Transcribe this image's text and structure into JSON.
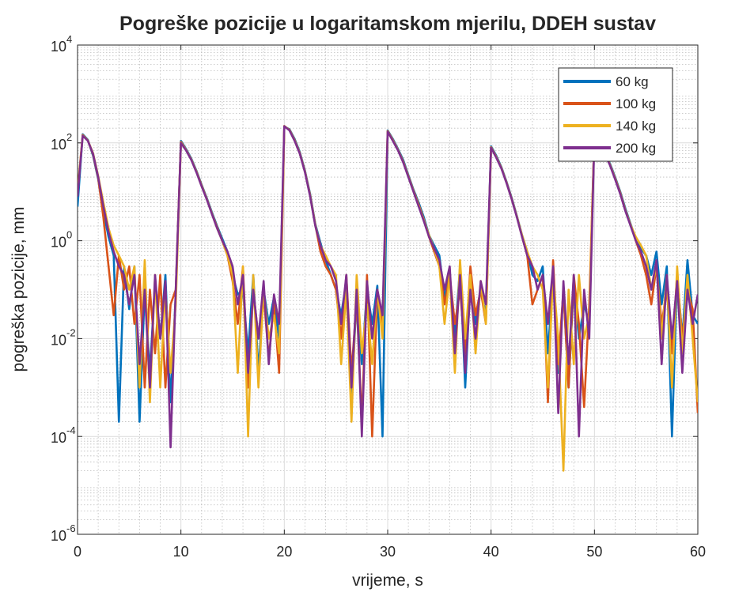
{
  "chart_data": {
    "type": "line",
    "title": "Pogreške pozicije u logaritamskom mjerilu, DDEH sustav",
    "xlabel": "vrijeme, s",
    "ylabel": "pogreška pozicije, mm",
    "yscale": "log",
    "grid": true,
    "minor_grid": true,
    "legend": "northeast",
    "xlim": [
      0,
      60
    ],
    "xticks": [
      0,
      10,
      20,
      30,
      40,
      50,
      60
    ],
    "ylim": [
      1e-06,
      10000
    ],
    "yticks": [
      {
        "value": 1e-06,
        "label": "10",
        "exponent": "-6"
      },
      {
        "value": 0.0001,
        "label": "10",
        "exponent": "-4"
      },
      {
        "value": 0.01,
        "label": "10",
        "exponent": "-2"
      },
      {
        "value": 1,
        "label": "10",
        "exponent": "0"
      },
      {
        "value": 100,
        "label": "10",
        "exponent": "2"
      },
      {
        "value": 10000,
        "label": "10",
        "exponent": "4"
      }
    ],
    "x": [
      0,
      0.5,
      1,
      1.5,
      2,
      2.5,
      3,
      3.5,
      4,
      4.5,
      5,
      5.5,
      6,
      6.5,
      7,
      7.5,
      8,
      8.5,
      9,
      9.5,
      10,
      10.5,
      11,
      11.5,
      12,
      12.5,
      13,
      13.5,
      14,
      14.5,
      15,
      15.5,
      16,
      16.5,
      17,
      17.5,
      18,
      18.5,
      19,
      19.5,
      20,
      20.5,
      21,
      21.5,
      22,
      22.5,
      23,
      23.5,
      24,
      24.5,
      25,
      25.5,
      26,
      26.5,
      27,
      27.5,
      28,
      28.5,
      29,
      29.5,
      30,
      30.5,
      31,
      31.5,
      32,
      32.5,
      33,
      33.5,
      34,
      34.5,
      35,
      35.5,
      36,
      36.5,
      37,
      37.5,
      38,
      38.5,
      39,
      39.5,
      40,
      40.5,
      41,
      41.5,
      42,
      42.5,
      43,
      43.5,
      44,
      44.5,
      45,
      45.5,
      46,
      46.5,
      47,
      47.5,
      48,
      48.5,
      49,
      49.5,
      50,
      50.5,
      51,
      51.5,
      52,
      52.5,
      53,
      53.5,
      54,
      54.5,
      55,
      55.5,
      56,
      56.5,
      57,
      57.5,
      58,
      58.5,
      59,
      59.5,
      60
    ],
    "series": [
      {
        "name": "60 kg",
        "color": "#0072bd",
        "values": [
          5,
          150,
          115,
          55,
          18,
          4,
          1.2,
          0.5,
          0.0002,
          0.3,
          0.04,
          0.3,
          0.0002,
          0.1,
          0.002,
          0.15,
          0.01,
          0.2,
          0.0005,
          0.08,
          110,
          75,
          48,
          27,
          14,
          7.5,
          3.8,
          2,
          1.1,
          0.6,
          0.2,
          0.08,
          0.1,
          0.005,
          0.2,
          0.002,
          0.1,
          0.02,
          0.07,
          0.01,
          215,
          190,
          120,
          65,
          27,
          9,
          2.2,
          0.9,
          0.4,
          0.2,
          0.1,
          0.03,
          0.15,
          0.0005,
          0.08,
          0.003,
          0.1,
          0.02,
          0.12,
          0.0001,
          180,
          120,
          75,
          45,
          22,
          11,
          6,
          3,
          1.3,
          0.8,
          0.5,
          0.07,
          0.2,
          0.01,
          0.3,
          0.001,
          0.15,
          0.02,
          0.1,
          0.03,
          85,
          55,
          32,
          16,
          7.5,
          3.2,
          1.3,
          0.6,
          0.2,
          0.15,
          0.3,
          0.005,
          0.2,
          0.002,
          0.1,
          0.001,
          0.15,
          0.01,
          0.05,
          0.02,
          160,
          105,
          62,
          38,
          20,
          10,
          4.5,
          2.2,
          1.1,
          0.7,
          0.5,
          0.2,
          0.6,
          0.05,
          0.3,
          0.0001,
          0.2,
          0.01,
          0.4,
          0.03,
          0.02
        ]
      },
      {
        "name": "100 kg",
        "color": "#d95319",
        "values": [
          10,
          145,
          112,
          58,
          19,
          3,
          0.3,
          0.03,
          0.5,
          0.1,
          0.3,
          0.02,
          0.2,
          0.001,
          0.1,
          0.005,
          0.2,
          0.001,
          0.05,
          0.1,
          105,
          72,
          46,
          26,
          13.5,
          7.2,
          3.6,
          1.9,
          1,
          0.5,
          0.15,
          0.02,
          0.3,
          0.001,
          0.1,
          0.01,
          0.08,
          0.004,
          0.05,
          0.002,
          218,
          185,
          115,
          62,
          26,
          8.5,
          2.1,
          0.6,
          0.3,
          0.2,
          0.1,
          0.01,
          0.2,
          0.002,
          0.06,
          0.0002,
          0.2,
          0.0001,
          0.1,
          0.02,
          175,
          115,
          72,
          42,
          21,
          10.5,
          5.5,
          2.7,
          1.2,
          0.6,
          0.3,
          0.05,
          0.2,
          0.02,
          0.1,
          0.005,
          0.3,
          0.03,
          0.1,
          0.02,
          82,
          52,
          31,
          15.5,
          7.2,
          3.1,
          1.2,
          0.5,
          0.05,
          0.1,
          0.2,
          0.0005,
          0.4,
          0.003,
          0.1,
          0.001,
          0.2,
          0.02,
          0.0004,
          0.05,
          155,
          102,
          61,
          36,
          19,
          9.5,
          4.2,
          2.1,
          1,
          0.5,
          0.2,
          0.05,
          0.3,
          0.02,
          0.1,
          0.005,
          0.2,
          0.01,
          0.1,
          0.04,
          0.0003
        ]
      },
      {
        "name": "140 kg",
        "color": "#edb120",
        "values": [
          9,
          142,
          111,
          62,
          21,
          6,
          1.8,
          0.8,
          0.5,
          0.3,
          0.1,
          0.3,
          0.001,
          0.4,
          0.0005,
          0.2,
          0.001,
          0.1,
          0.002,
          0.05,
          102,
          71,
          46,
          25.5,
          13.2,
          7.1,
          3.6,
          1.8,
          1,
          0.5,
          0.2,
          0.002,
          0.3,
          0.0001,
          0.2,
          0.001,
          0.1,
          0.01,
          0.03,
          0.005,
          222,
          182,
          112,
          61,
          25.5,
          8.2,
          2.1,
          0.8,
          0.5,
          0.3,
          0.2,
          0.003,
          0.1,
          0.0002,
          0.2,
          0.005,
          0.05,
          0.003,
          0.1,
          0.01,
          172,
          112,
          71,
          41,
          20.5,
          10.2,
          5.2,
          2.6,
          1.3,
          0.7,
          0.3,
          0.02,
          0.2,
          0.002,
          0.4,
          0.01,
          0.2,
          0.005,
          0.15,
          0.02,
          81,
          51,
          30.5,
          15.2,
          7.1,
          3.1,
          1.3,
          0.6,
          0.3,
          0.2,
          0.1,
          0.001,
          0.2,
          0.01,
          2e-05,
          0.1,
          0.003,
          0.2,
          0.01,
          0.03,
          152,
          101,
          61,
          36,
          18.5,
          9.2,
          4.1,
          2.1,
          1.2,
          0.8,
          0.5,
          0.1,
          0.3,
          0.01,
          0.2,
          0.001,
          0.3,
          0.005,
          0.2,
          0.01,
          0.0005
        ]
      },
      {
        "name": "200 kg",
        "color": "#7e2f8e",
        "values": [
          8,
          140,
          110,
          60,
          20,
          5,
          1.5,
          0.6,
          0.3,
          0.2,
          0.05,
          0.2,
          0.003,
          0.1,
          0.001,
          0.2,
          0.01,
          0.15,
          6e-05,
          0.1,
          100,
          70,
          45,
          25,
          13,
          7,
          3.5,
          1.8,
          1,
          0.6,
          0.3,
          0.05,
          0.2,
          0.002,
          0.1,
          0.01,
          0.15,
          0.003,
          0.08,
          0.02,
          220,
          180,
          110,
          60,
          25,
          8,
          2,
          0.8,
          0.4,
          0.3,
          0.15,
          0.02,
          0.2,
          0.001,
          0.1,
          0.0001,
          0.15,
          0.01,
          0.1,
          0.03,
          170,
          110,
          70,
          40,
          20,
          10,
          5,
          2.5,
          1.2,
          0.7,
          0.4,
          0.1,
          0.3,
          0.005,
          0.2,
          0.002,
          0.1,
          0.01,
          0.15,
          0.05,
          80,
          50,
          30,
          15,
          7,
          3,
          1.2,
          0.5,
          0.3,
          0.1,
          0.2,
          0.02,
          0.3,
          0.0003,
          0.15,
          0.003,
          0.2,
          0.0001,
          0.1,
          0.01,
          150,
          100,
          60,
          35,
          18,
          9,
          4,
          2,
          1,
          0.6,
          0.3,
          0.1,
          0.4,
          0.003,
          0.2,
          0.01,
          0.15,
          0.002,
          0.1,
          0.02,
          0.08
        ]
      }
    ]
  }
}
